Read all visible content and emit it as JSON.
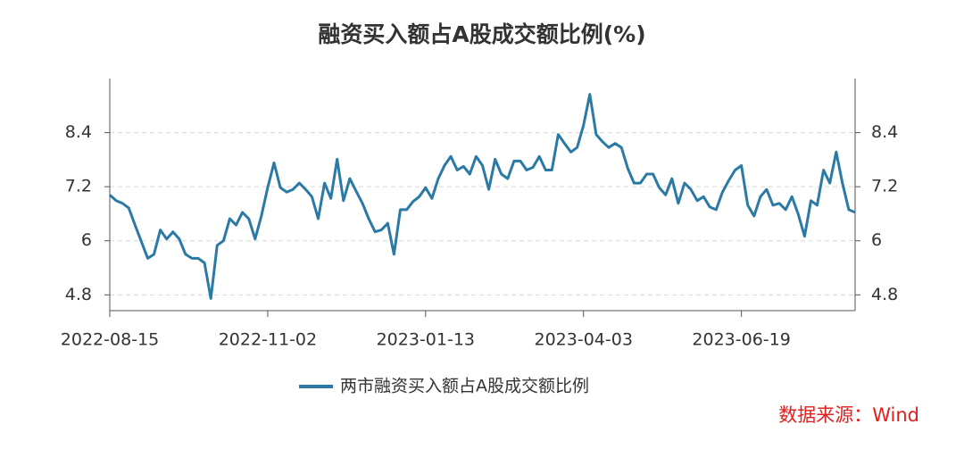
{
  "chart_data": {
    "type": "line",
    "title": "融资买入额占A股成交额比例(%)",
    "categories": [
      "2022-08-15",
      null,
      null,
      null,
      null,
      null,
      null,
      null,
      null,
      null,
      null,
      null,
      null,
      null,
      null,
      null,
      null,
      null,
      null,
      null,
      null,
      null,
      null,
      null,
      null,
      "2022-11-02",
      null,
      null,
      null,
      null,
      null,
      null,
      null,
      null,
      null,
      null,
      null,
      null,
      null,
      null,
      null,
      null,
      null,
      null,
      null,
      null,
      null,
      null,
      null,
      null,
      "2023-01-13",
      null,
      null,
      null,
      null,
      null,
      null,
      null,
      null,
      null,
      null,
      null,
      null,
      null,
      null,
      null,
      null,
      null,
      null,
      null,
      null,
      null,
      null,
      null,
      null,
      "2023-04-03",
      null,
      null,
      null,
      null,
      null,
      null,
      null,
      null,
      null,
      null,
      null,
      null,
      null,
      null,
      null,
      null,
      null,
      null,
      null,
      null,
      null,
      null,
      null,
      null,
      "2023-06-19",
      null,
      null,
      null,
      null,
      null,
      null,
      null,
      null,
      null,
      null,
      null,
      null,
      null,
      null,
      null,
      null,
      null,
      null
    ],
    "series": [
      {
        "name": "两市融资买入额占A股成交额比例",
        "color": "#2b7aa6",
        "values": [
          7.02,
          6.89,
          6.83,
          6.73,
          6.35,
          5.98,
          5.61,
          5.7,
          6.24,
          6.04,
          6.2,
          6.04,
          5.7,
          5.61,
          5.61,
          5.51,
          4.72,
          5.9,
          6.0,
          6.49,
          6.35,
          6.63,
          6.49,
          6.04,
          6.55,
          7.18,
          7.73,
          7.18,
          7.08,
          7.14,
          7.28,
          7.14,
          6.98,
          6.49,
          7.28,
          6.94,
          7.81,
          6.89,
          7.38,
          7.1,
          6.83,
          6.49,
          6.2,
          6.24,
          6.39,
          5.7,
          6.69,
          6.69,
          6.87,
          6.98,
          7.18,
          6.94,
          7.38,
          7.67,
          7.87,
          7.57,
          7.65,
          7.48,
          7.87,
          7.67,
          7.14,
          7.81,
          7.48,
          7.38,
          7.77,
          7.77,
          7.57,
          7.63,
          7.87,
          7.57,
          7.57,
          8.36,
          8.16,
          7.97,
          8.07,
          8.56,
          9.25,
          8.36,
          8.2,
          8.07,
          8.16,
          8.07,
          7.61,
          7.28,
          7.28,
          7.48,
          7.48,
          7.18,
          7.02,
          7.38,
          6.83,
          7.28,
          7.14,
          6.89,
          6.98,
          6.75,
          6.69,
          7.08,
          7.34,
          7.57,
          7.67,
          6.79,
          6.55,
          6.98,
          7.14,
          6.79,
          6.83,
          6.69,
          6.98,
          6.59,
          6.1,
          6.89,
          6.79,
          7.57,
          7.28,
          7.97,
          7.28,
          6.69,
          6.63
        ]
      }
    ],
    "ylim": [
      4.45,
      9.6
    ],
    "yticks": [
      4.8,
      6,
      7.2,
      8.4
    ],
    "grid": true,
    "source": "数据来源：Wind"
  }
}
